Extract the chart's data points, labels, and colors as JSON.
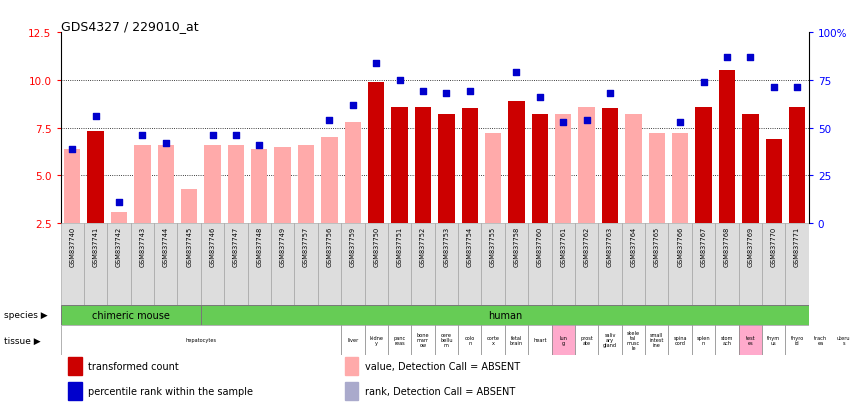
{
  "title": "GDS4327 / 229010_at",
  "samples": [
    "GSM837740",
    "GSM837741",
    "GSM837742",
    "GSM837743",
    "GSM837744",
    "GSM837745",
    "GSM837746",
    "GSM837747",
    "GSM837748",
    "GSM837749",
    "GSM837757",
    "GSM837756",
    "GSM837759",
    "GSM837750",
    "GSM837751",
    "GSM837752",
    "GSM837753",
    "GSM837754",
    "GSM837755",
    "GSM837758",
    "GSM837760",
    "GSM837761",
    "GSM837762",
    "GSM837763",
    "GSM837764",
    "GSM837765",
    "GSM837766",
    "GSM837767",
    "GSM837768",
    "GSM837769",
    "GSM837770",
    "GSM837771"
  ],
  "values": [
    6.4,
    7.3,
    3.1,
    6.6,
    6.6,
    4.3,
    6.6,
    6.6,
    6.4,
    6.5,
    6.6,
    7.0,
    7.8,
    9.9,
    8.6,
    8.6,
    8.2,
    8.5,
    7.2,
    8.9,
    8.2,
    8.2,
    8.6,
    8.5,
    8.2,
    7.2,
    7.2,
    8.6,
    10.5,
    8.2,
    6.9,
    8.6
  ],
  "percentiles_scaled": [
    6.4,
    8.1,
    3.6,
    7.1,
    6.7,
    null,
    7.1,
    7.1,
    6.6,
    null,
    null,
    7.9,
    8.7,
    10.9,
    10.0,
    9.4,
    9.3,
    9.4,
    null,
    10.4,
    9.1,
    7.8,
    7.9,
    9.3,
    null,
    null,
    7.8,
    9.9,
    11.2,
    11.2,
    9.6,
    9.6
  ],
  "absent_value": [
    true,
    false,
    true,
    true,
    true,
    true,
    true,
    true,
    true,
    true,
    true,
    true,
    true,
    false,
    false,
    false,
    false,
    false,
    true,
    false,
    false,
    true,
    true,
    false,
    true,
    true,
    true,
    false,
    false,
    false,
    false,
    false
  ],
  "absent_rank": [
    false,
    false,
    false,
    false,
    false,
    true,
    false,
    false,
    false,
    true,
    true,
    false,
    false,
    false,
    false,
    false,
    false,
    false,
    true,
    false,
    false,
    false,
    false,
    false,
    true,
    true,
    false,
    false,
    false,
    false,
    false,
    false
  ],
  "chimeric_count": 6,
  "ylim": [
    2.5,
    12.5
  ],
  "yticks_left": [
    2.5,
    5.0,
    7.5,
    10.0,
    12.5
  ],
  "bar_color_present": "#cc0000",
  "bar_color_absent": "#ffaaaa",
  "dot_color_present": "#0000cc",
  "dot_color_absent": "#aaaacc",
  "legend_labels": [
    "transformed count",
    "percentile rank within the sample",
    "value, Detection Call = ABSENT",
    "rank, Detection Call = ABSENT"
  ],
  "legend_colors": [
    "#cc0000",
    "#0000cc",
    "#ffaaaa",
    "#aaaacc"
  ],
  "tissue_data": [
    {
      "label": "hepatocytes",
      "start": 0,
      "end": 12,
      "color": "#ffffff"
    },
    {
      "label": "liver",
      "start": 12,
      "end": 13,
      "color": "#ffffff"
    },
    {
      "label": "kidne\ny",
      "start": 13,
      "end": 14,
      "color": "#ffffff"
    },
    {
      "label": "panc\nreas",
      "start": 14,
      "end": 15,
      "color": "#ffffff"
    },
    {
      "label": "bone\nmarr\now",
      "start": 15,
      "end": 16,
      "color": "#ffffff"
    },
    {
      "label": "cere\nbellu\nm",
      "start": 16,
      "end": 17,
      "color": "#ffffff"
    },
    {
      "label": "colo\nn",
      "start": 17,
      "end": 18,
      "color": "#ffffff"
    },
    {
      "label": "corte\nx",
      "start": 18,
      "end": 19,
      "color": "#ffffff"
    },
    {
      "label": "fetal\nbrain",
      "start": 19,
      "end": 20,
      "color": "#ffffff"
    },
    {
      "label": "heart",
      "start": 20,
      "end": 21,
      "color": "#ffffff"
    },
    {
      "label": "lun\ng",
      "start": 21,
      "end": 22,
      "color": "#ffaacc"
    },
    {
      "label": "prost\nate",
      "start": 22,
      "end": 23,
      "color": "#ffffff"
    },
    {
      "label": "saliv\nary\ngland",
      "start": 23,
      "end": 24,
      "color": "#ffffff"
    },
    {
      "label": "skele\ntal\nmusc\nle",
      "start": 24,
      "end": 25,
      "color": "#ffffff"
    },
    {
      "label": "small\nintest\nine",
      "start": 25,
      "end": 26,
      "color": "#ffffff"
    },
    {
      "label": "spina\ncord",
      "start": 26,
      "end": 27,
      "color": "#ffffff"
    },
    {
      "label": "splen\nn",
      "start": 27,
      "end": 28,
      "color": "#ffffff"
    },
    {
      "label": "stom\nach",
      "start": 28,
      "end": 29,
      "color": "#ffffff"
    },
    {
      "label": "test\nes",
      "start": 29,
      "end": 30,
      "color": "#ffaacc"
    },
    {
      "label": "thym\nus",
      "start": 30,
      "end": 31,
      "color": "#ffffff"
    },
    {
      "label": "thyro\nid",
      "start": 31,
      "end": 32,
      "color": "#ffffff"
    },
    {
      "label": "trach\nea",
      "start": 32,
      "end": 33,
      "color": "#ffffff"
    },
    {
      "label": "uteru\ns",
      "start": 33,
      "end": 34,
      "color": "#ffffff"
    }
  ]
}
